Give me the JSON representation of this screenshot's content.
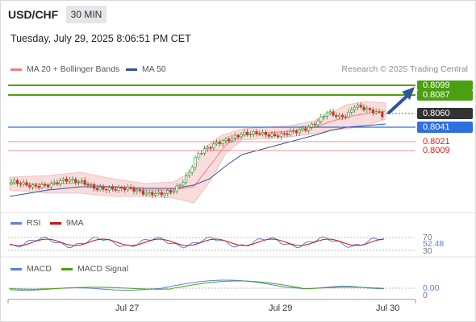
{
  "header": {
    "pair": "USD/CHF",
    "timeframe": "30 MIN",
    "datetime": "Tuesday, July 29, 2025 8:06:51 PM CET"
  },
  "legend": {
    "bb": {
      "label": "MA 20 + Bollinger Bands",
      "color": "#f08080"
    },
    "ma50": {
      "label": "MA 50",
      "color": "#2f5596"
    },
    "credit": "Research © 2025 Trading Central"
  },
  "levels": {
    "target_high": {
      "value": "0.8099",
      "color": "#4aa010"
    },
    "target_low": {
      "value": "0.8087",
      "color": "#4aa010"
    },
    "current": {
      "value": "0.8060",
      "color": "#333333"
    },
    "pivot": {
      "value": "0.8041",
      "color": "#2f6fe0"
    },
    "support1": {
      "value": "0.8021",
      "color": "#d6231e"
    },
    "support2": {
      "value": "0.8009",
      "color": "#d6231e"
    }
  },
  "rsi": {
    "label": "RSI",
    "ma_label": "9MA",
    "value": "52.48",
    "level_high": "70",
    "level_low": "30",
    "rsi_color": "#5b7fe0",
    "ma_color": "#cc1111"
  },
  "macd": {
    "label": "MACD",
    "signal_label": "MACD Signal",
    "value": "0.00",
    "zero": "0",
    "macd_color": "#5b7fe0",
    "signal_color": "#4aa010"
  },
  "xaxis": {
    "labels": [
      "Jul 27",
      "Jul 29",
      "Jul 30"
    ]
  }
}
